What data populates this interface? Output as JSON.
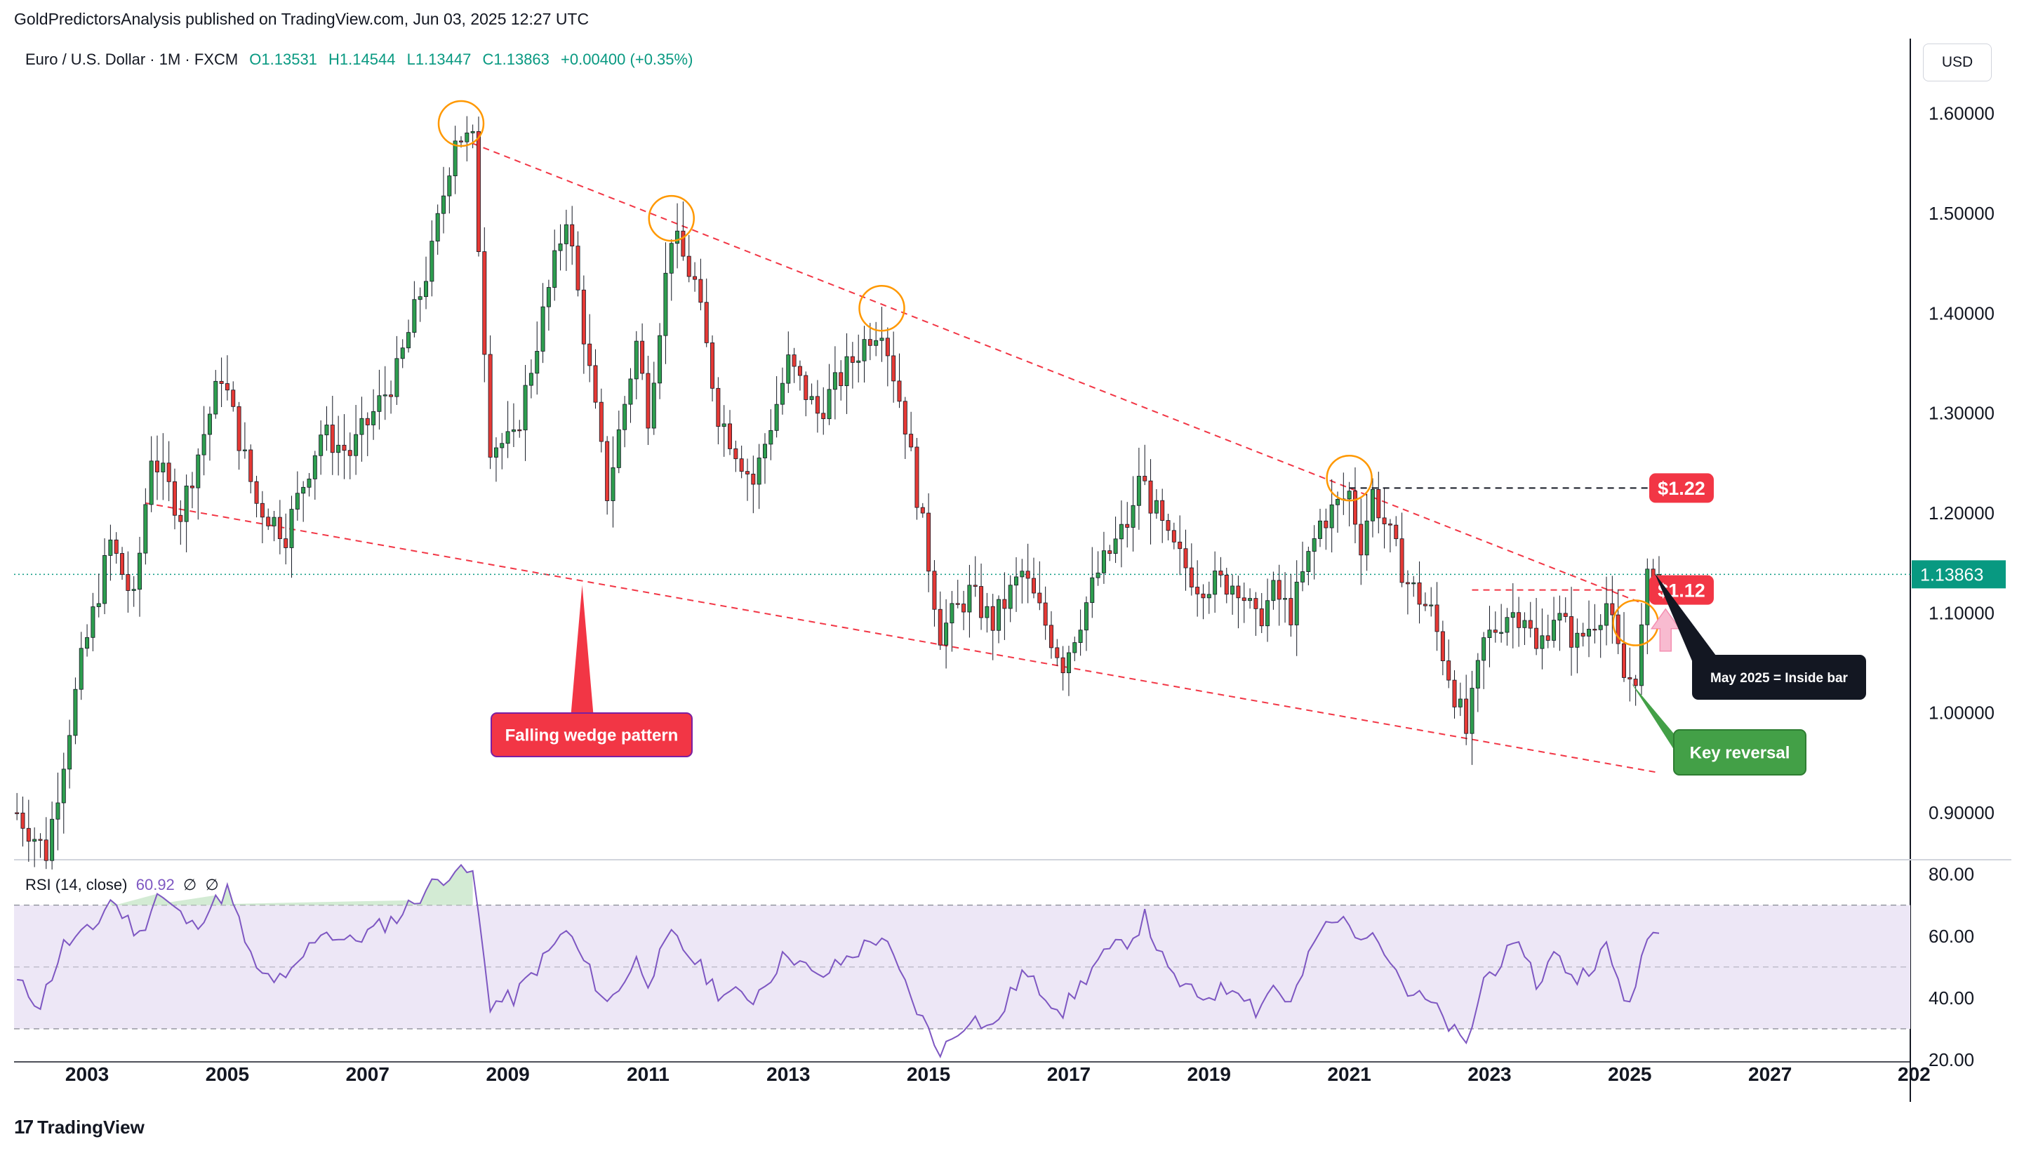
{
  "header": {
    "publisher_line": "GoldPredictorsAnalysis published on TradingView.com, Jun 03, 2025 12:27 UTC"
  },
  "symbol": {
    "name": "Euro / U.S. Dollar · 1M · FXCM",
    "open": "O1.13531",
    "high": "H1.14544",
    "low": "L1.13447",
    "close": "C1.13863",
    "change": "+0.00400 (+0.35%)"
  },
  "currency_button": "USD",
  "footer": {
    "brand": "TradingView",
    "logo_glyph": "17"
  },
  "colors": {
    "up": "#089981",
    "up_fill": "#2e9e4f",
    "down": "#f23645",
    "down_fill": "#e53935",
    "wedge": "#f23645",
    "circle": "#ff9800",
    "rsi": "#7e57c2",
    "rsi_band": "#ede7f6",
    "label_red": "#f23645",
    "label_green": "#43a047",
    "label_dark": "#131722",
    "last_price": "#089981"
  },
  "chart_data": [
    {
      "type": "candlestick",
      "title": "Euro / U.S. Dollar · 1M · FXCM",
      "x_range": [
        "2002-01",
        "2029-01"
      ],
      "x_ticks": [
        "2003",
        "2005",
        "2007",
        "2009",
        "2011",
        "2013",
        "2015",
        "2017",
        "2019",
        "2021",
        "2023",
        "2025",
        "2027",
        "202"
      ],
      "ylim": [
        0.855,
        1.675
      ],
      "y_ticks": [
        "1.60000",
        "1.50000",
        "1.40000",
        "1.30000",
        "1.20000",
        "1.10000",
        "1.00000",
        "0.90000"
      ],
      "last_price": 1.13863,
      "last_price_label": "1.13863",
      "grid": false,
      "anchors": [
        [
          "2002-01",
          0.9
        ],
        [
          "2002-06",
          0.86
        ],
        [
          "2002-12",
          1.05
        ],
        [
          "2003-05",
          1.17
        ],
        [
          "2003-09",
          1.11
        ],
        [
          "2003-12",
          1.26
        ],
        [
          "2004-05",
          1.2
        ],
        [
          "2004-12",
          1.34
        ],
        [
          "2005-06",
          1.21
        ],
        [
          "2005-11",
          1.18
        ],
        [
          "2006-05",
          1.28
        ],
        [
          "2006-10",
          1.26
        ],
        [
          "2007-06",
          1.34
        ],
        [
          "2007-12",
          1.46
        ],
        [
          "2008-04",
          1.58
        ],
        [
          "2008-07",
          1.57
        ],
        [
          "2008-10",
          1.27
        ],
        [
          "2009-02",
          1.27
        ],
        [
          "2009-11",
          1.5
        ],
        [
          "2010-06",
          1.22
        ],
        [
          "2010-11",
          1.37
        ],
        [
          "2011-01",
          1.3
        ],
        [
          "2011-05",
          1.48
        ],
        [
          "2011-09",
          1.43
        ],
        [
          "2012-01",
          1.3
        ],
        [
          "2012-07",
          1.23
        ],
        [
          "2013-01",
          1.35
        ],
        [
          "2013-06",
          1.3
        ],
        [
          "2014-03",
          1.38
        ],
        [
          "2014-05",
          1.39
        ],
        [
          "2014-09",
          1.29
        ],
        [
          "2015-03",
          1.08
        ],
        [
          "2015-08",
          1.12
        ],
        [
          "2015-12",
          1.09
        ],
        [
          "2016-05",
          1.14
        ],
        [
          "2016-12",
          1.05
        ],
        [
          "2017-06",
          1.14
        ],
        [
          "2017-12",
          1.2
        ],
        [
          "2018-01",
          1.24
        ],
        [
          "2018-06",
          1.17
        ],
        [
          "2018-11",
          1.13
        ],
        [
          "2019-06",
          1.13
        ],
        [
          "2019-09",
          1.09
        ],
        [
          "2019-12",
          1.12
        ],
        [
          "2020-03",
          1.1
        ],
        [
          "2020-08",
          1.19
        ],
        [
          "2021-01",
          1.22
        ],
        [
          "2021-03",
          1.17
        ],
        [
          "2021-05",
          1.22
        ],
        [
          "2021-11",
          1.13
        ],
        [
          "2022-03",
          1.1
        ],
        [
          "2022-09",
          0.98
        ],
        [
          "2022-12",
          1.07
        ],
        [
          "2023-04",
          1.1
        ],
        [
          "2023-07",
          1.1
        ],
        [
          "2023-09",
          1.06
        ],
        [
          "2023-12",
          1.1
        ],
        [
          "2024-04",
          1.07
        ],
        [
          "2024-09",
          1.11
        ],
        [
          "2024-12",
          1.035
        ],
        [
          "2025-01",
          1.035
        ],
        [
          "2025-02",
          1.04
        ],
        [
          "2025-03",
          1.08
        ],
        [
          "2025-04",
          1.13
        ],
        [
          "2025-05",
          1.135
        ],
        [
          "2025-06",
          1.1386
        ]
      ],
      "annotations": {
        "wedge_upper": [
          [
            "2008-07",
            1.57
          ],
          [
            "2025-03",
            1.11
          ]
        ],
        "wedge_lower": [
          [
            "2003-11",
            1.21
          ],
          [
            "2025-06",
            0.94
          ]
        ],
        "resistance_high": {
          "from": "2021-01",
          "to": "2025-06",
          "y": 1.225,
          "label": "$1.22"
        },
        "resistance_low": {
          "from": "2022-10",
          "to": "2025-02",
          "y": 1.123,
          "label": "$1.12"
        },
        "circles": [
          [
            "2008-05",
            1.59
          ],
          [
            "2011-05",
            1.495
          ],
          [
            "2014-05",
            1.405
          ],
          [
            "2021-01",
            1.235
          ],
          [
            "2025-02",
            1.09
          ]
        ],
        "labels": {
          "falling_wedge": "Falling wedge pattern",
          "key_reversal": "Key reversal",
          "inside_bar": "May 2025 = Inside bar",
          "level_122": "$1.22",
          "level_112": "$1.12"
        }
      }
    },
    {
      "type": "line",
      "title": "RSI (14, close)",
      "indicator": "RSI",
      "length": 14,
      "source": "close",
      "last_value": "60.92",
      "extra_labels": [
        "∅",
        "∅"
      ],
      "ylim": [
        20,
        84
      ],
      "y_ticks": [
        "80.00",
        "60.00",
        "40.00",
        "20.00"
      ],
      "bands": {
        "upper": 70,
        "middle": 50,
        "lower": 30
      },
      "anchors": [
        [
          "2002-01",
          45
        ],
        [
          "2002-05",
          38
        ],
        [
          "2002-09",
          57
        ],
        [
          "2003-02",
          62
        ],
        [
          "2003-05",
          72
        ],
        [
          "2003-10",
          60
        ],
        [
          "2004-01",
          74
        ],
        [
          "2004-07",
          63
        ],
        [
          "2005-01",
          75
        ],
        [
          "2005-06",
          48
        ],
        [
          "2005-11",
          45
        ],
        [
          "2006-05",
          62
        ],
        [
          "2006-10",
          58
        ],
        [
          "2007-06",
          66
        ],
        [
          "2007-11",
          75
        ],
        [
          "2008-04",
          82
        ],
        [
          "2008-07",
          80
        ],
        [
          "2008-10",
          38
        ],
        [
          "2009-02",
          40
        ],
        [
          "2009-11",
          62
        ],
        [
          "2010-06",
          38
        ],
        [
          "2010-11",
          52
        ],
        [
          "2011-01",
          46
        ],
        [
          "2011-05",
          60
        ],
        [
          "2011-09",
          52
        ],
        [
          "2012-01",
          42
        ],
        [
          "2012-07",
          40
        ],
        [
          "2013-01",
          55
        ],
        [
          "2013-06",
          46
        ],
        [
          "2014-03",
          58
        ],
        [
          "2014-05",
          60
        ],
        [
          "2014-10",
          40
        ],
        [
          "2015-03",
          22
        ],
        [
          "2015-08",
          34
        ],
        [
          "2015-12",
          30
        ],
        [
          "2016-05",
          48
        ],
        [
          "2016-12",
          36
        ],
        [
          "2017-06",
          52
        ],
        [
          "2017-12",
          60
        ],
        [
          "2018-02",
          66
        ],
        [
          "2018-06",
          48
        ],
        [
          "2018-11",
          40
        ],
        [
          "2019-06",
          44
        ],
        [
          "2019-09",
          36
        ],
        [
          "2019-12",
          44
        ],
        [
          "2020-03",
          38
        ],
        [
          "2020-08",
          62
        ],
        [
          "2021-01",
          66
        ],
        [
          "2021-03",
          56
        ],
        [
          "2021-05",
          64
        ],
        [
          "2021-11",
          42
        ],
        [
          "2022-03",
          38
        ],
        [
          "2022-09",
          24
        ],
        [
          "2022-12",
          46
        ],
        [
          "2023-04",
          54
        ],
        [
          "2023-07",
          56
        ],
        [
          "2023-09",
          44
        ],
        [
          "2023-12",
          54
        ],
        [
          "2024-04",
          46
        ],
        [
          "2024-09",
          56
        ],
        [
          "2024-12",
          40
        ],
        [
          "2025-02",
          42
        ],
        [
          "2025-04",
          60
        ],
        [
          "2025-06",
          60.92
        ]
      ]
    }
  ]
}
